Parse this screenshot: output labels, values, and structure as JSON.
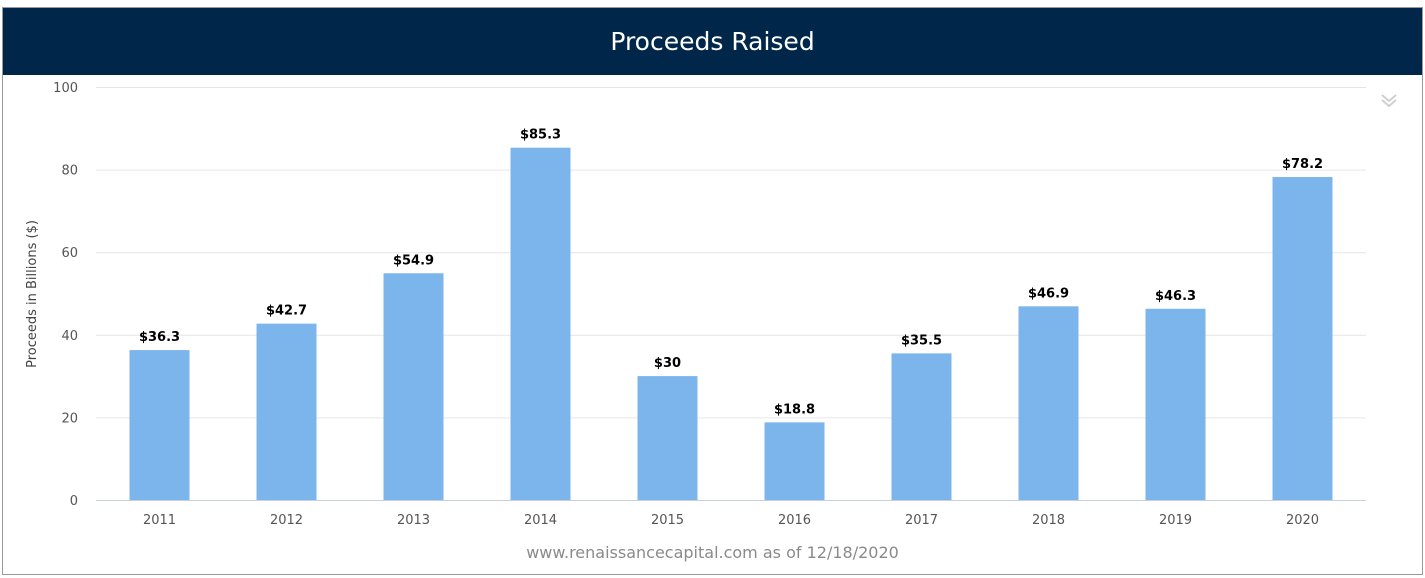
{
  "chart_data": {
    "type": "bar",
    "title": "Proceeds Raised",
    "ylabel": "Proceeds in Billions ($)",
    "xlabel": "",
    "categories": [
      "2011",
      "2012",
      "2013",
      "2014",
      "2015",
      "2016",
      "2017",
      "2018",
      "2019",
      "2020"
    ],
    "values": [
      36.3,
      42.7,
      54.9,
      85.3,
      30,
      18.8,
      35.5,
      46.9,
      46.3,
      78.2
    ],
    "data_labels": [
      "$36.3",
      "$42.7",
      "$54.9",
      "$85.3",
      "$30",
      "$18.8",
      "$35.5",
      "$46.9",
      "$46.3",
      "$78.2"
    ],
    "ylim": [
      0,
      100
    ],
    "yticks": [
      "0",
      "20",
      "40",
      "60",
      "80",
      "100"
    ],
    "grid": true,
    "legend": "none",
    "bar_color": "#7cb5ec",
    "header_color": "#00274a"
  },
  "footer": {
    "source_text": "www.renaissancecapital.com as of 12/18/2020"
  },
  "icons": {
    "menu": "chevron-double-down-icon"
  }
}
